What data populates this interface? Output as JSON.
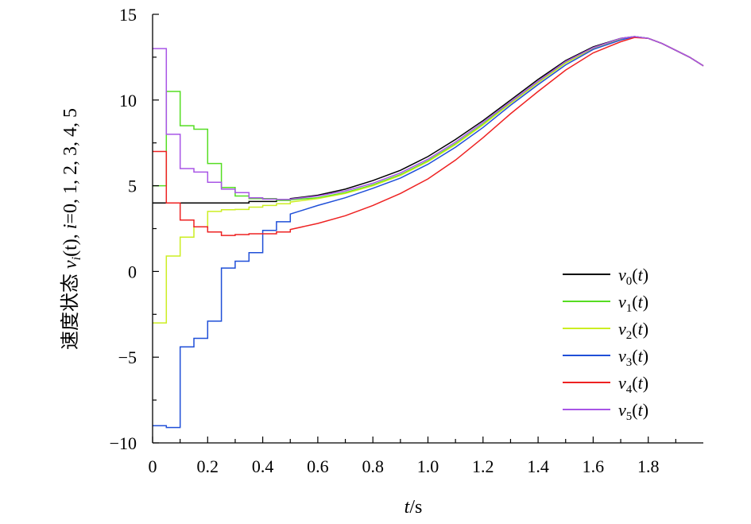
{
  "chart_data": {
    "type": "line",
    "title": "",
    "xlabel": {
      "var": "t",
      "unit": "/s"
    },
    "ylabel": {
      "prefix": "速度状态 ",
      "var": "v",
      "sub": "i",
      "arg": "(t), ",
      "index_var": "i",
      "index_vals": "=0, 1, 2, 3, 4, 5"
    },
    "xlim": [
      0,
      2.0
    ],
    "ylim": [
      -10,
      15
    ],
    "x_ticks": [
      "0",
      "0.2",
      "0.4",
      "0.6",
      "0.8",
      "1.0",
      "1.2",
      "1.4",
      "1.6",
      "1.8"
    ],
    "y_ticks": [
      "15",
      "10",
      "5",
      "0",
      "−5",
      "−10"
    ],
    "grid": false,
    "legend_position": "bottom-right",
    "series": [
      {
        "name": "v",
        "sub": "0",
        "arg": "(t)",
        "color": "#000000",
        "points": [
          [
            0,
            4.0
          ],
          [
            0.35,
            4.08
          ],
          [
            0.45,
            4.15
          ],
          [
            0.5,
            4.25
          ],
          [
            0.6,
            4.45
          ],
          [
            0.7,
            4.8
          ],
          [
            0.8,
            5.3
          ],
          [
            0.9,
            5.9
          ],
          [
            1.0,
            6.7
          ],
          [
            1.1,
            7.7
          ],
          [
            1.2,
            8.8
          ],
          [
            1.3,
            10.0
          ],
          [
            1.4,
            11.2
          ],
          [
            1.5,
            12.3
          ],
          [
            1.6,
            13.1
          ],
          [
            1.7,
            13.6
          ],
          [
            1.75,
            13.7
          ],
          [
            1.8,
            13.6
          ],
          [
            1.85,
            13.3
          ],
          [
            1.9,
            12.9
          ],
          [
            1.95,
            12.5
          ],
          [
            2.0,
            12.0
          ]
        ]
      },
      {
        "name": "v",
        "sub": "1",
        "arg": "(t)",
        "color": "#55dd22",
        "points": [
          [
            0,
            5.0
          ],
          [
            0.05,
            10.5
          ],
          [
            0.1,
            8.5
          ],
          [
            0.15,
            8.3
          ],
          [
            0.2,
            6.3
          ],
          [
            0.25,
            4.9
          ],
          [
            0.3,
            4.4
          ],
          [
            0.35,
            4.25
          ],
          [
            0.45,
            4.15
          ],
          [
            0.5,
            4.18
          ],
          [
            0.6,
            4.3
          ],
          [
            0.7,
            4.6
          ],
          [
            0.8,
            5.05
          ],
          [
            0.9,
            5.65
          ],
          [
            1.0,
            6.45
          ],
          [
            1.1,
            7.45
          ],
          [
            1.2,
            8.6
          ],
          [
            1.3,
            9.85
          ],
          [
            1.4,
            11.05
          ],
          [
            1.5,
            12.2
          ],
          [
            1.6,
            13.05
          ],
          [
            1.7,
            13.55
          ],
          [
            1.75,
            13.7
          ],
          [
            1.8,
            13.6
          ],
          [
            1.85,
            13.3
          ],
          [
            1.9,
            12.9
          ],
          [
            1.95,
            12.5
          ],
          [
            2.0,
            12.0
          ]
        ]
      },
      {
        "name": "v",
        "sub": "2",
        "arg": "(t)",
        "color": "#ccee22",
        "points": [
          [
            0,
            -3.0
          ],
          [
            0.05,
            0.9
          ],
          [
            0.1,
            2.0
          ],
          [
            0.15,
            2.6
          ],
          [
            0.2,
            3.5
          ],
          [
            0.25,
            3.6
          ],
          [
            0.3,
            3.62
          ],
          [
            0.35,
            3.75
          ],
          [
            0.4,
            3.85
          ],
          [
            0.45,
            3.95
          ],
          [
            0.5,
            4.05
          ],
          [
            0.6,
            4.25
          ],
          [
            0.7,
            4.55
          ],
          [
            0.8,
            5.0
          ],
          [
            0.9,
            5.6
          ],
          [
            1.0,
            6.4
          ],
          [
            1.1,
            7.4
          ],
          [
            1.2,
            8.55
          ],
          [
            1.3,
            9.8
          ],
          [
            1.4,
            11.0
          ],
          [
            1.5,
            12.15
          ],
          [
            1.6,
            13.0
          ],
          [
            1.7,
            13.55
          ],
          [
            1.75,
            13.7
          ],
          [
            1.8,
            13.6
          ],
          [
            1.85,
            13.3
          ],
          [
            1.9,
            12.9
          ],
          [
            1.95,
            12.5
          ],
          [
            2.0,
            12.0
          ]
        ]
      },
      {
        "name": "v",
        "sub": "3",
        "arg": "(t)",
        "color": "#1f4fd8",
        "points": [
          [
            0,
            -9.0
          ],
          [
            0.05,
            -9.1
          ],
          [
            0.1,
            -4.4
          ],
          [
            0.15,
            -3.9
          ],
          [
            0.2,
            -2.9
          ],
          [
            0.25,
            0.2
          ],
          [
            0.3,
            0.6
          ],
          [
            0.35,
            1.1
          ],
          [
            0.4,
            2.4
          ],
          [
            0.45,
            2.9
          ],
          [
            0.5,
            3.35
          ],
          [
            0.55,
            3.6
          ],
          [
            0.6,
            3.85
          ],
          [
            0.7,
            4.3
          ],
          [
            0.8,
            4.85
          ],
          [
            0.9,
            5.45
          ],
          [
            1.0,
            6.25
          ],
          [
            1.1,
            7.25
          ],
          [
            1.2,
            8.4
          ],
          [
            1.3,
            9.7
          ],
          [
            1.4,
            10.9
          ],
          [
            1.5,
            12.05
          ],
          [
            1.6,
            12.95
          ],
          [
            1.7,
            13.5
          ],
          [
            1.75,
            13.7
          ],
          [
            1.8,
            13.6
          ],
          [
            1.85,
            13.3
          ],
          [
            1.9,
            12.9
          ],
          [
            1.95,
            12.5
          ],
          [
            2.0,
            12.0
          ]
        ]
      },
      {
        "name": "v",
        "sub": "4",
        "arg": "(t)",
        "color": "#ee2222",
        "points": [
          [
            0,
            7.0
          ],
          [
            0.05,
            4.0
          ],
          [
            0.1,
            3.0
          ],
          [
            0.15,
            2.6
          ],
          [
            0.2,
            2.3
          ],
          [
            0.25,
            2.1
          ],
          [
            0.3,
            2.15
          ],
          [
            0.35,
            2.2
          ],
          [
            0.4,
            2.2
          ],
          [
            0.45,
            2.3
          ],
          [
            0.5,
            2.45
          ],
          [
            0.6,
            2.8
          ],
          [
            0.7,
            3.25
          ],
          [
            0.8,
            3.85
          ],
          [
            0.9,
            4.55
          ],
          [
            1.0,
            5.4
          ],
          [
            1.1,
            6.5
          ],
          [
            1.2,
            7.8
          ],
          [
            1.3,
            9.2
          ],
          [
            1.4,
            10.5
          ],
          [
            1.5,
            11.75
          ],
          [
            1.6,
            12.75
          ],
          [
            1.7,
            13.4
          ],
          [
            1.75,
            13.65
          ],
          [
            1.8,
            13.6
          ],
          [
            1.85,
            13.3
          ],
          [
            1.9,
            12.9
          ],
          [
            1.95,
            12.5
          ],
          [
            2.0,
            12.0
          ]
        ]
      },
      {
        "name": "v",
        "sub": "5",
        "arg": "(t)",
        "color": "#a855e6",
        "points": [
          [
            0,
            13.0
          ],
          [
            0.05,
            8.0
          ],
          [
            0.1,
            6.0
          ],
          [
            0.15,
            5.8
          ],
          [
            0.2,
            5.2
          ],
          [
            0.25,
            4.8
          ],
          [
            0.3,
            4.6
          ],
          [
            0.35,
            4.3
          ],
          [
            0.4,
            4.22
          ],
          [
            0.45,
            4.2
          ],
          [
            0.5,
            4.22
          ],
          [
            0.6,
            4.4
          ],
          [
            0.7,
            4.7
          ],
          [
            0.8,
            5.15
          ],
          [
            0.9,
            5.75
          ],
          [
            1.0,
            6.55
          ],
          [
            1.1,
            7.55
          ],
          [
            1.2,
            8.7
          ],
          [
            1.3,
            9.9
          ],
          [
            1.4,
            11.1
          ],
          [
            1.5,
            12.25
          ],
          [
            1.6,
            13.05
          ],
          [
            1.7,
            13.6
          ],
          [
            1.75,
            13.7
          ],
          [
            1.8,
            13.6
          ],
          [
            1.85,
            13.3
          ],
          [
            1.9,
            12.9
          ],
          [
            1.95,
            12.5
          ],
          [
            2.0,
            12.0
          ]
        ]
      }
    ]
  }
}
